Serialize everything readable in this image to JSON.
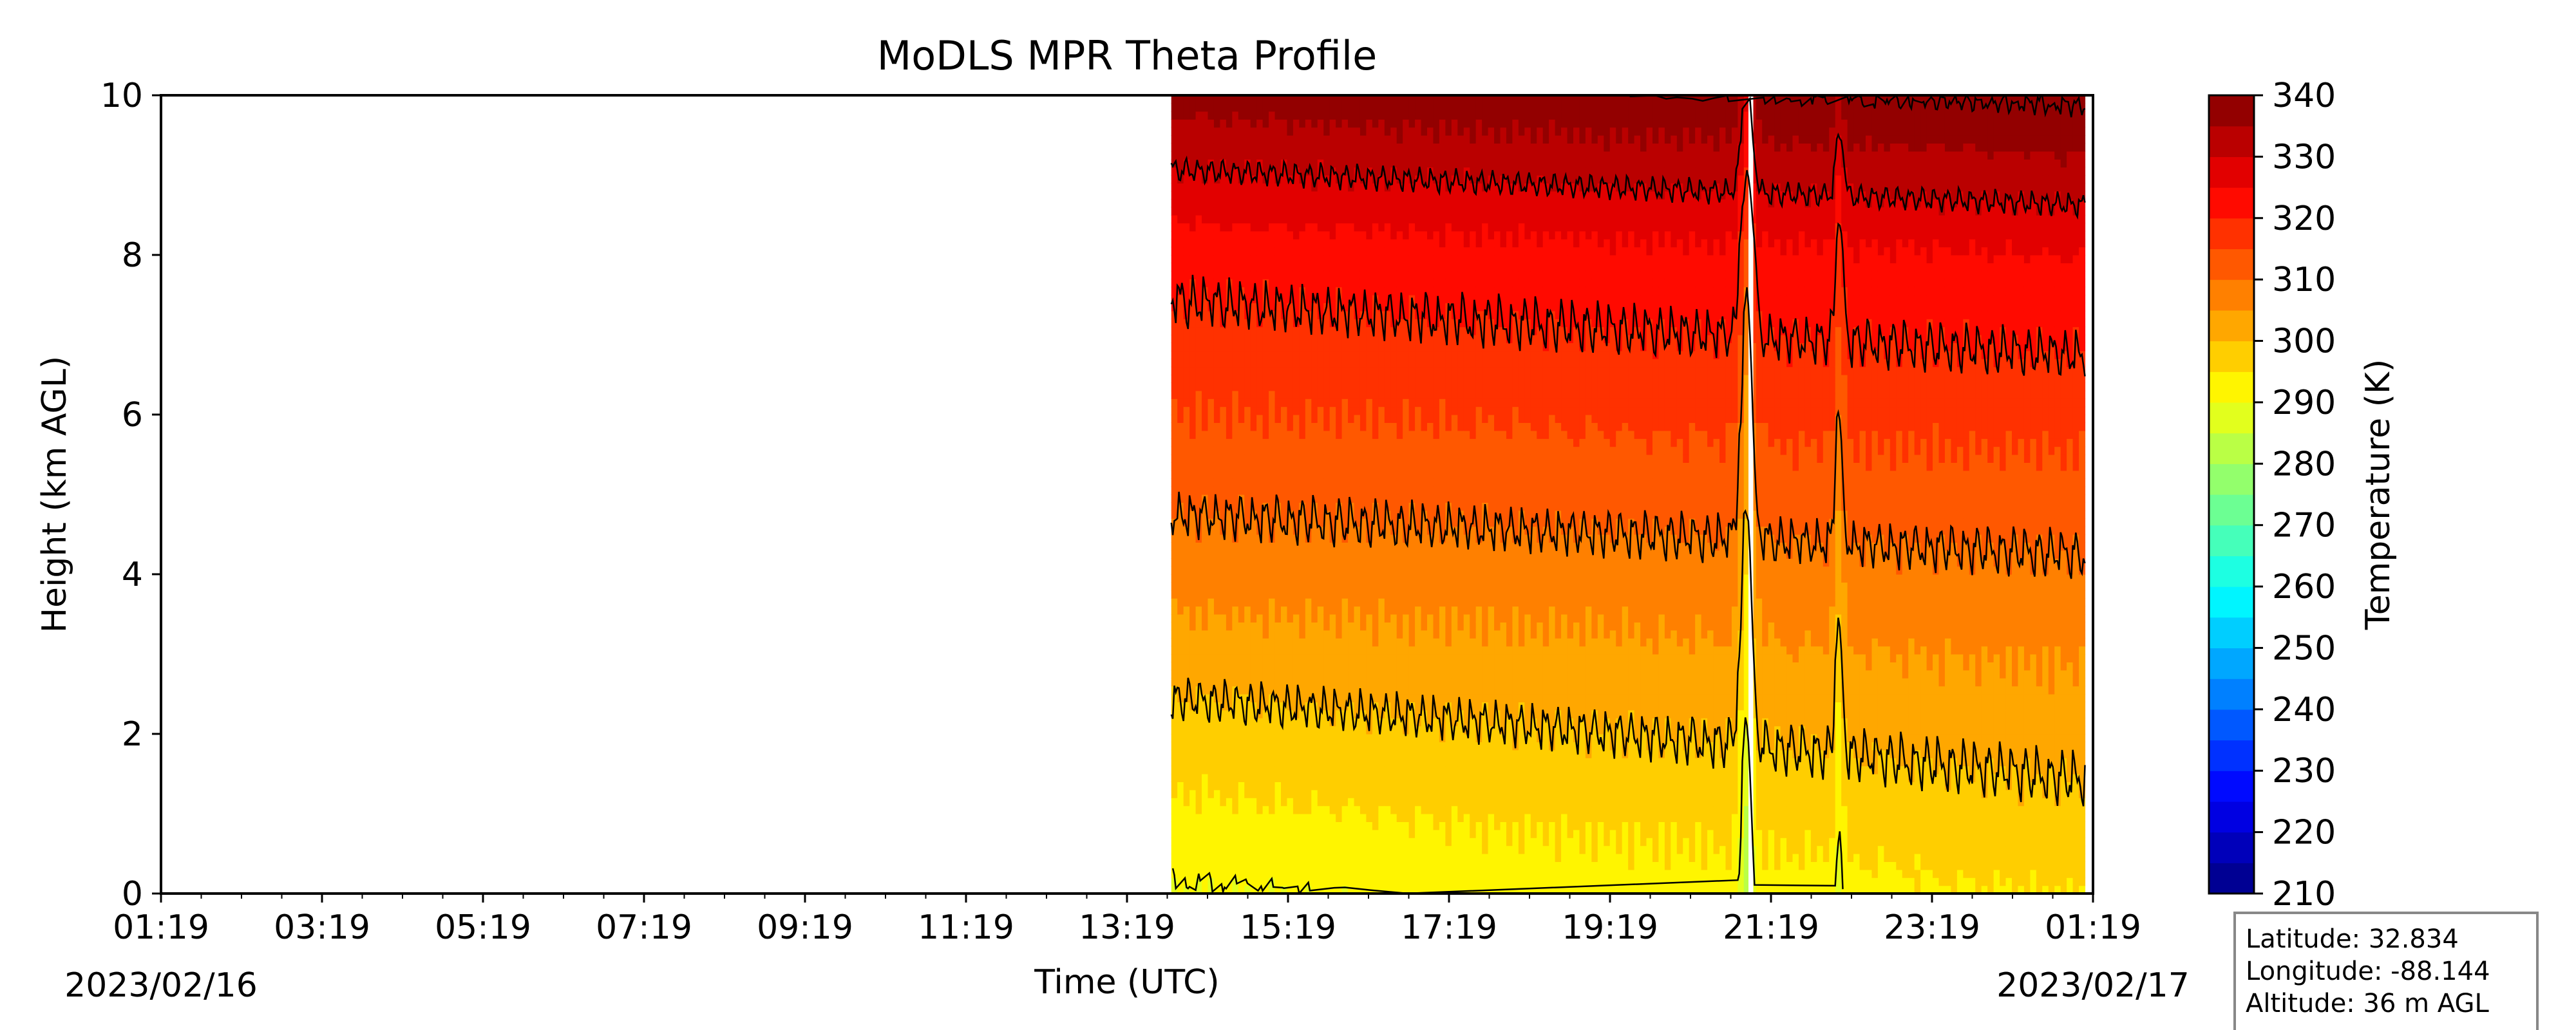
{
  "chart_data": {
    "type": "heatmap",
    "title": "MoDLS MPR Theta Profile",
    "xlabel": "Time (UTC)",
    "ylabel": "Height (km AGL)",
    "x_tick_labels": [
      "01:19",
      "03:19",
      "05:19",
      "07:19",
      "09:19",
      "11:19",
      "13:19",
      "15:19",
      "17:19",
      "19:19",
      "21:19",
      "23:19",
      "01:19"
    ],
    "x_hours": [
      0,
      2,
      4,
      6,
      8,
      10,
      12,
      14,
      16,
      18,
      20,
      22,
      24
    ],
    "date_start": "2023/02/16",
    "date_end": "2023/02/17",
    "xlim_hours": [
      0,
      24
    ],
    "ylim": [
      0,
      10
    ],
    "y_ticks": [
      0,
      2,
      4,
      6,
      8,
      10
    ],
    "data_start_hour": 12.55,
    "data_end_hour": 23.9,
    "missing_column_hour": 19.75,
    "contour_levels_K": [
      290,
      300,
      310,
      320,
      330,
      340
    ],
    "theta_profile": {
      "height_km": [
        0,
        2,
        4,
        6,
        8,
        10
      ],
      "theta_K_start": [
        290,
        298,
        307,
        315,
        322,
        337
      ],
      "theta_K_end": [
        295,
        302,
        309,
        317,
        325,
        341
      ]
    },
    "colorbar": {
      "label": "Temperature (K)",
      "vmin": 210,
      "vmax": 340,
      "step": 5,
      "tick_labels": [
        "210",
        "220",
        "230",
        "240",
        "250",
        "260",
        "270",
        "280",
        "290",
        "300",
        "310",
        "320",
        "330",
        "340"
      ],
      "colormap": "jet"
    },
    "grid": false
  },
  "info_box": {
    "latitude": "Latitude: 32.834",
    "longitude": "Longitude: -88.144",
    "altitude": "Altitude: 36 m AGL"
  }
}
